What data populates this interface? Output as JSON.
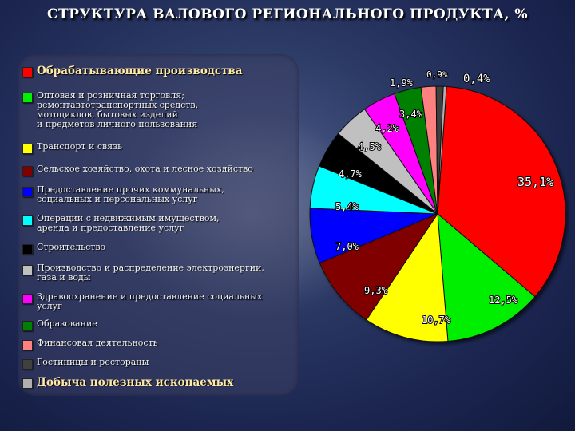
{
  "title": "СТРУКТУРА ВАЛОВОГО РЕГИОНАЛЬНОГО ПРОДУКТА, %",
  "chart_data": {
    "type": "pie",
    "title": "СТРУКТУРА ВАЛОВОГО РЕГИОНАЛЬНОГО ПРОДУКТА, %",
    "slices": [
      {
        "label": "Обрабатывающие производства",
        "value": 35.1,
        "display": "35,1%",
        "color": "#ff0000"
      },
      {
        "label": "Оптовая и розничная торговля; ремонтавтотранспортных средств, мотоциклов, бытовых изделий и предметов личного пользования",
        "value": 12.5,
        "display": "12,5%",
        "color": "#00ee00"
      },
      {
        "label": "Транспорт и связь",
        "value": 10.7,
        "display": "10,7%",
        "color": "#ffff00"
      },
      {
        "label": "Сельское хозяйство, охота и лесное хозяйство",
        "value": 9.3,
        "display": "9,3%",
        "color": "#800000"
      },
      {
        "label": "Предоставление прочих коммунальных, социальных и персональных услуг",
        "value": 7.0,
        "display": "7,0%",
        "color": "#0000ff"
      },
      {
        "label": "Операции с недвижимым имуществом, аренда и предоставление услуг",
        "value": 5.4,
        "display": "5,4%",
        "color": "#00ffff"
      },
      {
        "label": "Строительство",
        "value": 4.7,
        "display": "4,7%",
        "color": "#000000"
      },
      {
        "label": "Производство и распределение электроэнергии, газа и воды",
        "value": 4.5,
        "display": "4,5%",
        "color": "#c0c0c0"
      },
      {
        "label": "Здравоохранение и предоставление социальных услуг",
        "value": 4.2,
        "display": "4,2%",
        "color": "#ff00ff"
      },
      {
        "label": "Образование",
        "value": 3.4,
        "display": "3,4%",
        "color": "#008000"
      },
      {
        "label": "Финансовая деятельность",
        "value": 1.9,
        "display": "1,9%",
        "color": "#ff8080"
      },
      {
        "label": "Гостиницы и рестораны",
        "value": 0.9,
        "display": "0,9%",
        "color": "#404040"
      },
      {
        "label": "Добыча полезных ископаемых",
        "value": 0.4,
        "display": "0,4%",
        "color": "#b0b0b0"
      }
    ]
  },
  "legend": [
    {
      "text": "Обрабатывающие производства",
      "color": "#ff0000",
      "big": true
    },
    {
      "text": "Оптовая и розничная торговля;\nремонтавтотранспортных средств,\nмотоциклов, бытовых изделий\nи предметов личного пользования",
      "color": "#00ee00",
      "big": false
    },
    {
      "text": "Транспорт и связь",
      "color": "#ffff00",
      "big": false
    },
    {
      "text": "Сельское хозяйство, охота и лесное хозяйство",
      "color": "#800000",
      "big": false
    },
    {
      "text": "Предоставление прочих коммунальных,\nсоциальных и персональных услуг",
      "color": "#0000ff",
      "big": false
    },
    {
      "text": "Операции с недвижимым имуществом,\nаренда и предоставление услуг",
      "color": "#00ffff",
      "big": false
    },
    {
      "text": "Строительство",
      "color": "#000000",
      "big": false
    },
    {
      "text": "Производство и распределение электроэнергии,\nгаза и воды",
      "color": "#c0c0c0",
      "big": false
    },
    {
      "text": "Здравоохранение и предоставление социальных\nуслуг",
      "color": "#ff00ff",
      "big": false
    },
    {
      "text": "Образование",
      "color": "#008000",
      "big": false
    },
    {
      "text": "Финансовая деятельность",
      "color": "#ff8080",
      "big": false
    },
    {
      "text": "Гостиницы и рестораны",
      "color": "#404040",
      "big": false
    },
    {
      "text": "Добыча полезных ископаемых",
      "color": "#b0b0b0",
      "big": true
    }
  ]
}
